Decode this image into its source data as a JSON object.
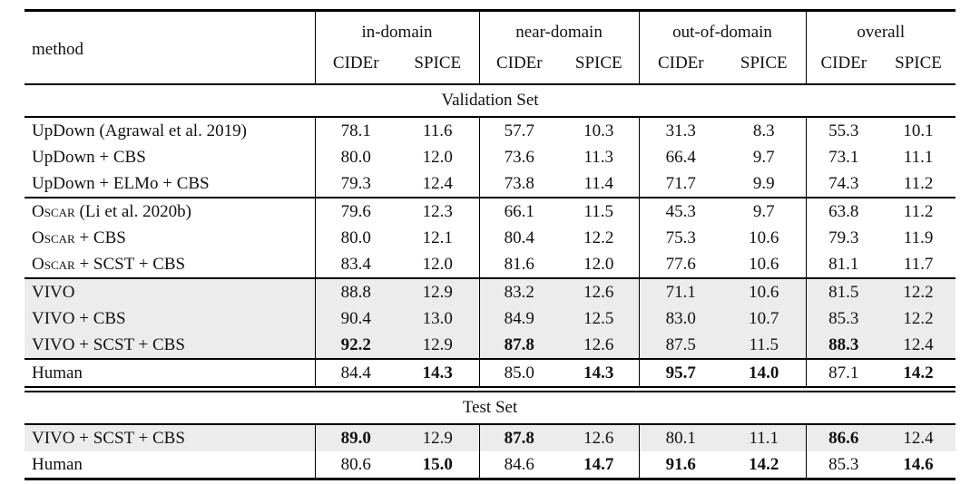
{
  "table": {
    "method_header": "method",
    "col_groups": [
      {
        "label": "in-domain"
      },
      {
        "label": "near-domain"
      },
      {
        "label": "out-of-domain"
      },
      {
        "label": "overall"
      }
    ],
    "metric_headers": [
      "CIDEr",
      "SPICE"
    ],
    "highlight_color": "#ececec",
    "sections": [
      {
        "title": "Validation Set",
        "groups": [
          {
            "rows": [
              {
                "method_sc": "",
                "method_rest": "UpDown (Agrawal et al. 2019)",
                "highlight": false,
                "values": [
                  "78.1",
                  "11.6",
                  "57.7",
                  "10.3",
                  "31.3",
                  "8.3",
                  "55.3",
                  "10.1"
                ],
                "bold": [
                  false,
                  false,
                  false,
                  false,
                  false,
                  false,
                  false,
                  false
                ]
              },
              {
                "method_sc": "",
                "method_rest": "UpDown + CBS",
                "highlight": false,
                "values": [
                  "80.0",
                  "12.0",
                  "73.6",
                  "11.3",
                  "66.4",
                  "9.7",
                  "73.1",
                  "11.1"
                ],
                "bold": [
                  false,
                  false,
                  false,
                  false,
                  false,
                  false,
                  false,
                  false
                ]
              },
              {
                "method_sc": "",
                "method_rest": "UpDown + ELMo + CBS",
                "highlight": false,
                "values": [
                  "79.3",
                  "12.4",
                  "73.8",
                  "11.4",
                  "71.7",
                  "9.9",
                  "74.3",
                  "11.2"
                ],
                "bold": [
                  false,
                  false,
                  false,
                  false,
                  false,
                  false,
                  false,
                  false
                ]
              }
            ]
          },
          {
            "rows": [
              {
                "method_sc": "Oscar",
                "method_rest": " (Li et al. 2020b)",
                "highlight": false,
                "values": [
                  "79.6",
                  "12.3",
                  "66.1",
                  "11.5",
                  "45.3",
                  "9.7",
                  "63.8",
                  "11.2"
                ],
                "bold": [
                  false,
                  false,
                  false,
                  false,
                  false,
                  false,
                  false,
                  false
                ]
              },
              {
                "method_sc": "Oscar",
                "method_rest": " + CBS",
                "highlight": false,
                "values": [
                  "80.0",
                  "12.1",
                  "80.4",
                  "12.2",
                  "75.3",
                  "10.6",
                  "79.3",
                  "11.9"
                ],
                "bold": [
                  false,
                  false,
                  false,
                  false,
                  false,
                  false,
                  false,
                  false
                ]
              },
              {
                "method_sc": "Oscar",
                "method_rest": " + SCST + CBS",
                "highlight": false,
                "values": [
                  "83.4",
                  "12.0",
                  "81.6",
                  "12.0",
                  "77.6",
                  "10.6",
                  "81.1",
                  "11.7"
                ],
                "bold": [
                  false,
                  false,
                  false,
                  false,
                  false,
                  false,
                  false,
                  false
                ]
              }
            ]
          },
          {
            "rows": [
              {
                "method_sc": "",
                "method_rest": "VIVO",
                "highlight": true,
                "values": [
                  "88.8",
                  "12.9",
                  "83.2",
                  "12.6",
                  "71.1",
                  "10.6",
                  "81.5",
                  "12.2"
                ],
                "bold": [
                  false,
                  false,
                  false,
                  false,
                  false,
                  false,
                  false,
                  false
                ]
              },
              {
                "method_sc": "",
                "method_rest": "VIVO + CBS",
                "highlight": true,
                "values": [
                  "90.4",
                  "13.0",
                  "84.9",
                  "12.5",
                  "83.0",
                  "10.7",
                  "85.3",
                  "12.2"
                ],
                "bold": [
                  false,
                  false,
                  false,
                  false,
                  false,
                  false,
                  false,
                  false
                ]
              },
              {
                "method_sc": "",
                "method_rest": "VIVO + SCST + CBS",
                "highlight": true,
                "values": [
                  "92.2",
                  "12.9",
                  "87.8",
                  "12.6",
                  "87.5",
                  "11.5",
                  "88.3",
                  "12.4"
                ],
                "bold": [
                  true,
                  false,
                  true,
                  false,
                  false,
                  false,
                  true,
                  false
                ]
              }
            ]
          },
          {
            "rows": [
              {
                "method_sc": "",
                "method_rest": "Human",
                "highlight": false,
                "values": [
                  "84.4",
                  "14.3",
                  "85.0",
                  "14.3",
                  "95.7",
                  "14.0",
                  "87.1",
                  "14.2"
                ],
                "bold": [
                  false,
                  true,
                  false,
                  true,
                  true,
                  true,
                  false,
                  true
                ]
              }
            ]
          }
        ]
      },
      {
        "title": "Test Set",
        "groups": [
          {
            "rows": [
              {
                "method_sc": "",
                "method_rest": "VIVO + SCST + CBS",
                "highlight": true,
                "values": [
                  "89.0",
                  "12.9",
                  "87.8",
                  "12.6",
                  "80.1",
                  "11.1",
                  "86.6",
                  "12.4"
                ],
                "bold": [
                  true,
                  false,
                  true,
                  false,
                  false,
                  false,
                  true,
                  false
                ]
              },
              {
                "method_sc": "",
                "method_rest": "Human",
                "highlight": false,
                "values": [
                  "80.6",
                  "15.0",
                  "84.6",
                  "14.7",
                  "91.6",
                  "14.2",
                  "85.3",
                  "14.6"
                ],
                "bold": [
                  false,
                  true,
                  false,
                  true,
                  true,
                  true,
                  false,
                  true
                ]
              }
            ]
          }
        ]
      }
    ]
  }
}
